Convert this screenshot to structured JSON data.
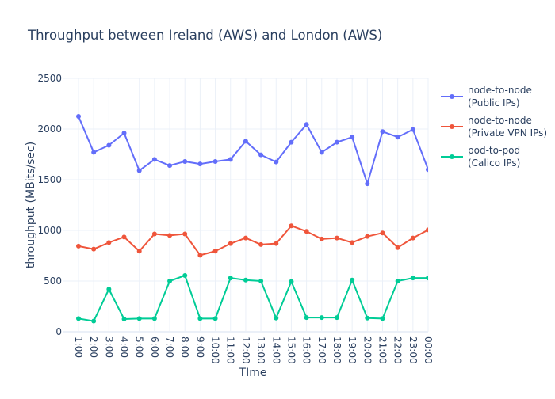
{
  "chart_data": {
    "type": "line",
    "title": "Throughput between Ireland (AWS) and London (AWS)",
    "xlabel": "TIme",
    "ylabel": "throughput (MBits/sec)",
    "ylim": [
      0,
      2500
    ],
    "yticks": [
      0,
      500,
      1000,
      1500,
      2000,
      2500
    ],
    "ytick_labels": [
      "0",
      "500",
      "1000",
      "1500",
      "2000",
      "2500"
    ],
    "grid": true,
    "legend_position": "top-right",
    "categories": [
      "1:00",
      "2:00",
      "3:00",
      "4:00",
      "5:00",
      "6:00",
      "7:00",
      "8:00",
      "9:00",
      "10:00",
      "11:00",
      "12:00",
      "13:00",
      "14:00",
      "15:00",
      "16:00",
      "17:00",
      "18:00",
      "19:00",
      "20:00",
      "21:00",
      "22:00",
      "23:00",
      "00:00"
    ],
    "series": [
      {
        "name": "node-to-node (Public IPs)",
        "legend_lines": [
          "node-to-node",
          "(Public IPs)"
        ],
        "color": "#636efa",
        "values": [
          2125,
          1770,
          1840,
          1960,
          1590,
          1700,
          1640,
          1680,
          1655,
          1680,
          1700,
          1880,
          1745,
          1675,
          1870,
          2045,
          1770,
          1870,
          1920,
          1460,
          1975,
          1920,
          1995,
          1600
        ]
      },
      {
        "name": "node-to-node (Private VPN IPs)",
        "legend_lines": [
          "node-to-node",
          "(Private VPN IPs)"
        ],
        "color": "#ef553b",
        "values": [
          845,
          815,
          880,
          935,
          795,
          965,
          950,
          965,
          755,
          795,
          870,
          925,
          860,
          870,
          1045,
          990,
          915,
          925,
          880,
          940,
          975,
          830,
          925,
          1005
        ]
      },
      {
        "name": "pod-to-pod (Calico IPs)",
        "legend_lines": [
          "pod-to-pod",
          "(Calico IPs)"
        ],
        "color": "#00cc96",
        "values": [
          130,
          105,
          420,
          125,
          130,
          130,
          500,
          555,
          130,
          130,
          530,
          510,
          500,
          135,
          495,
          140,
          140,
          140,
          510,
          135,
          130,
          500,
          530,
          530
        ]
      }
    ]
  }
}
